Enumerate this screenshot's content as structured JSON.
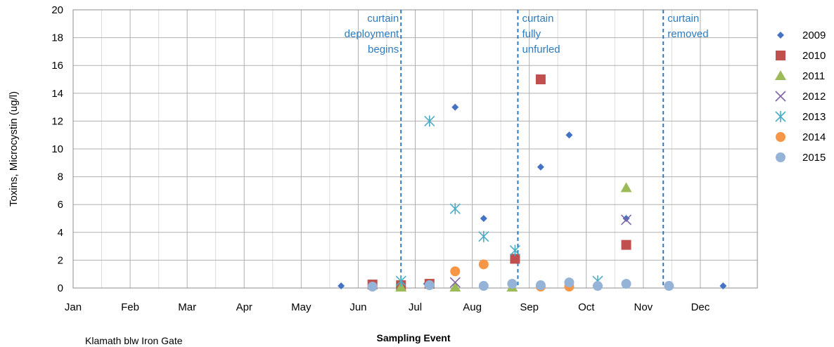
{
  "chart_data": {
    "type": "scatter",
    "title": "",
    "xlabel": "Sampling Event",
    "ylabel": "Toxins, Microcystin (ug/l)",
    "ylim": [
      0,
      20
    ],
    "yticks": [
      0,
      2,
      4,
      6,
      8,
      10,
      12,
      14,
      16,
      18,
      20
    ],
    "months": [
      "Jan",
      "Feb",
      "Mar",
      "Apr",
      "May",
      "Jun",
      "Jul",
      "Aug",
      "Sep",
      "Oct",
      "Nov",
      "Dec"
    ],
    "grid": true,
    "legend_position": "right",
    "site_label": "Klamath blw Iron Gate",
    "annotations": [
      {
        "month": 5.75,
        "lines": [
          "curtain",
          "deployment",
          "begins"
        ],
        "align": "end"
      },
      {
        "month": 7.8,
        "lines": [
          "curtain",
          "fully",
          "unfurled"
        ],
        "align": "start"
      },
      {
        "month": 10.35,
        "lines": [
          "curtain",
          "removed"
        ],
        "align": "start"
      }
    ],
    "series": [
      {
        "name": "2009",
        "marker": "diamond",
        "color": "#4472c4",
        "points": [
          [
            4.7,
            0.15
          ],
          [
            6.2,
            0.3
          ],
          [
            6.7,
            13.0
          ],
          [
            7.2,
            5.0
          ],
          [
            8.2,
            8.7
          ],
          [
            8.7,
            11.0
          ],
          [
            9.7,
            5.0
          ],
          [
            11.4,
            0.15
          ]
        ]
      },
      {
        "name": "2010",
        "marker": "square",
        "color": "#c0504d",
        "points": [
          [
            5.25,
            0.25
          ],
          [
            5.75,
            0.2
          ],
          [
            6.25,
            0.3
          ],
          [
            7.75,
            2.1
          ],
          [
            8.2,
            15.0
          ],
          [
            9.7,
            3.1
          ]
        ]
      },
      {
        "name": "2011",
        "marker": "triangle",
        "color": "#9bbb59",
        "points": [
          [
            5.75,
            0.05
          ],
          [
            6.7,
            0.05
          ],
          [
            7.7,
            0.05
          ],
          [
            9.7,
            7.2
          ]
        ]
      },
      {
        "name": "2012",
        "marker": "x",
        "color": "#8064a2",
        "points": [
          [
            6.7,
            0.4
          ],
          [
            9.7,
            4.9
          ]
        ]
      },
      {
        "name": "2013",
        "marker": "star",
        "color": "#4bacc6",
        "points": [
          [
            5.75,
            0.5
          ],
          [
            6.25,
            12.0
          ],
          [
            6.7,
            5.7
          ],
          [
            7.2,
            3.7
          ],
          [
            7.75,
            2.7
          ],
          [
            9.2,
            0.5
          ]
        ]
      },
      {
        "name": "2014",
        "marker": "circle",
        "color": "#f79646",
        "points": [
          [
            6.7,
            1.2
          ],
          [
            7.2,
            1.7
          ],
          [
            8.2,
            0.1
          ],
          [
            8.7,
            0.1
          ]
        ]
      },
      {
        "name": "2015",
        "marker": "circle",
        "color": "#95b3d7",
        "points": [
          [
            5.25,
            0.1
          ],
          [
            6.25,
            0.2
          ],
          [
            7.2,
            0.15
          ],
          [
            7.7,
            0.3
          ],
          [
            8.2,
            0.2
          ],
          [
            8.7,
            0.4
          ],
          [
            9.2,
            0.15
          ],
          [
            9.7,
            0.3
          ],
          [
            10.45,
            0.15
          ]
        ]
      }
    ]
  }
}
